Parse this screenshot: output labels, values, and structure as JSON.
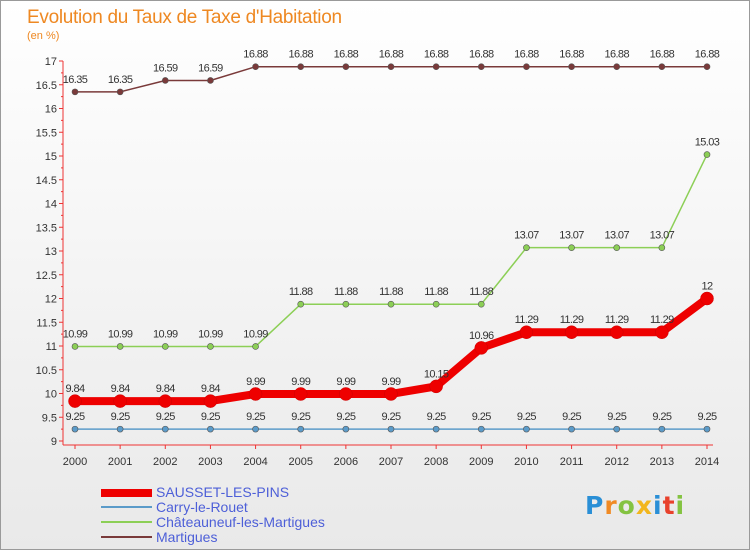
{
  "header": {
    "title": "Evolution du Taux de Taxe d'Habitation",
    "subtitle": "(en %)"
  },
  "chart_data": {
    "type": "line",
    "title": "Evolution du Taux de Taxe d'Habitation",
    "ylabel": "(en %)",
    "xlabel": "",
    "categories": [
      "2000",
      "2001",
      "2002",
      "2003",
      "2004",
      "2005",
      "2006",
      "2007",
      "2008",
      "2009",
      "2010",
      "2011",
      "2012",
      "2013",
      "2014"
    ],
    "ylim": [
      9,
      17
    ],
    "yticks": [
      "9",
      "9.5",
      "10",
      "10.5",
      "11",
      "11.5",
      "12",
      "12.5",
      "13",
      "13.5",
      "14",
      "14.5",
      "15",
      "15.5",
      "16",
      "16.5",
      "17"
    ],
    "grid": false,
    "series": [
      {
        "name": "SAUSSET-LES-PINS",
        "color": "#ee0000",
        "values": [
          9.84,
          9.84,
          9.84,
          9.84,
          9.99,
          9.99,
          9.99,
          9.99,
          10.15,
          10.96,
          11.29,
          11.29,
          11.29,
          11.29,
          12
        ],
        "labels": [
          "9.84",
          "9.84",
          "9.84",
          "9.84",
          "9.99",
          "9.99",
          "9.99",
          "9.99",
          "10.15",
          "10.96",
          "11.29",
          "11.29",
          "11.29",
          "11.29",
          "12"
        ]
      },
      {
        "name": "Carry-le-Rouet",
        "color": "#5b9bc9",
        "values": [
          9.25,
          9.25,
          9.25,
          9.25,
          9.25,
          9.25,
          9.25,
          9.25,
          9.25,
          9.25,
          9.25,
          9.25,
          9.25,
          9.25,
          9.25
        ],
        "labels": [
          "9.25",
          "9.25",
          "9.25",
          "9.25",
          "9.25",
          "9.25",
          "9.25",
          "9.25",
          "9.25",
          "9.25",
          "9.25",
          "9.25",
          "9.25",
          "9.25",
          "9.25"
        ]
      },
      {
        "name": "Châteauneuf-les-Martigues",
        "color": "#8ccf56",
        "values": [
          10.99,
          10.99,
          10.99,
          10.99,
          10.99,
          11.88,
          11.88,
          11.88,
          11.88,
          11.88,
          13.07,
          13.07,
          13.07,
          13.07,
          15.03
        ],
        "labels": [
          "10.99",
          "10.99",
          "10.99",
          "10.99",
          "10.99",
          "11.88",
          "11.88",
          "11.88",
          "11.88",
          "11.88",
          "13.07",
          "13.07",
          "13.07",
          "13.07",
          "15.03"
        ]
      },
      {
        "name": "Martigues",
        "color": "#7a3a3a",
        "values": [
          16.35,
          16.35,
          16.59,
          16.59,
          16.88,
          16.88,
          16.88,
          16.88,
          16.88,
          16.88,
          16.88,
          16.88,
          16.88,
          16.88,
          16.88
        ],
        "labels": [
          "16.35",
          "16.35",
          "16.59",
          "16.59",
          "16.88",
          "16.88",
          "16.88",
          "16.88",
          "16.88",
          "16.88",
          "16.88",
          "16.88",
          "16.88",
          "16.88",
          "16.88"
        ]
      }
    ],
    "legend_position": "bottom-left"
  },
  "legend": {
    "items": [
      {
        "label": "SAUSSET-LES-PINS",
        "color": "#ee0000"
      },
      {
        "label": "Carry-le-Rouet",
        "color": "#5b9bc9"
      },
      {
        "label": "Châteauneuf-les-Martigues",
        "color": "#8ccf56"
      },
      {
        "label": "Martigues",
        "color": "#7a3a3a"
      }
    ]
  },
  "logo": {
    "letters": [
      "P",
      "r",
      "o",
      "x",
      "i",
      "t",
      "i"
    ]
  }
}
